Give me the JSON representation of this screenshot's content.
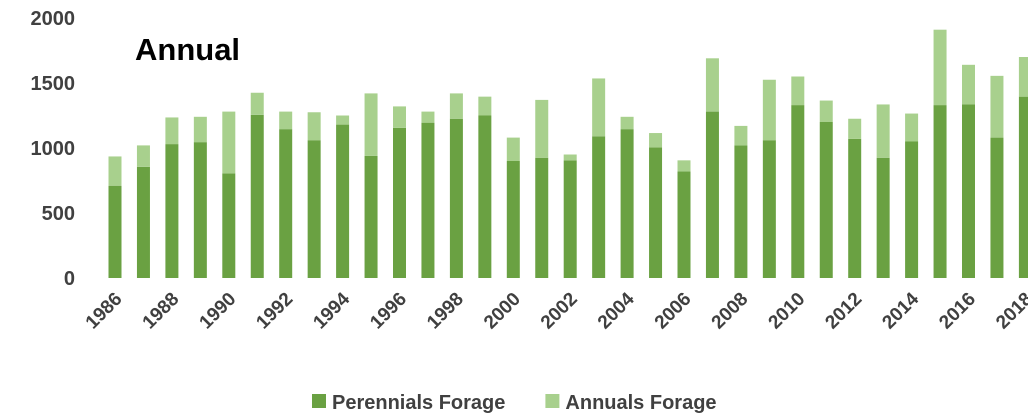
{
  "chart_data": {
    "type": "bar",
    "stacked": true,
    "title": "Annual",
    "categories": [
      "1986",
      null,
      "1988",
      null,
      "1990",
      null,
      "1992",
      null,
      "1994",
      null,
      "1996",
      null,
      "1998",
      null,
      "2000",
      null,
      "2002",
      null,
      "2004",
      null,
      "2006",
      null,
      "2008",
      null,
      "2010",
      null,
      "2012",
      null,
      "2014",
      null,
      "2016",
      null,
      "2018"
    ],
    "series": [
      {
        "name": "Perennials Forage",
        "color": "#6aa142",
        "values": [
          710,
          855,
          1030,
          1045,
          805,
          1255,
          1145,
          1060,
          1180,
          940,
          1155,
          1195,
          1225,
          1250,
          900,
          925,
          905,
          1090,
          1145,
          1005,
          820,
          1280,
          1020,
          1060,
          1330,
          1200,
          1070,
          925,
          1050,
          1330,
          1335,
          1080,
          1395
        ]
      },
      {
        "name": "Annuals Forage",
        "color": "#a8d08d",
        "values": [
          225,
          165,
          205,
          195,
          475,
          170,
          135,
          215,
          70,
          480,
          165,
          85,
          195,
          145,
          180,
          445,
          45,
          445,
          95,
          110,
          85,
          410,
          150,
          465,
          220,
          165,
          155,
          410,
          215,
          580,
          305,
          475,
          305
        ]
      }
    ],
    "ylim": [
      0,
      2000
    ],
    "yticks": [
      0,
      500,
      1000,
      1500,
      2000
    ],
    "legend": "bottom"
  }
}
